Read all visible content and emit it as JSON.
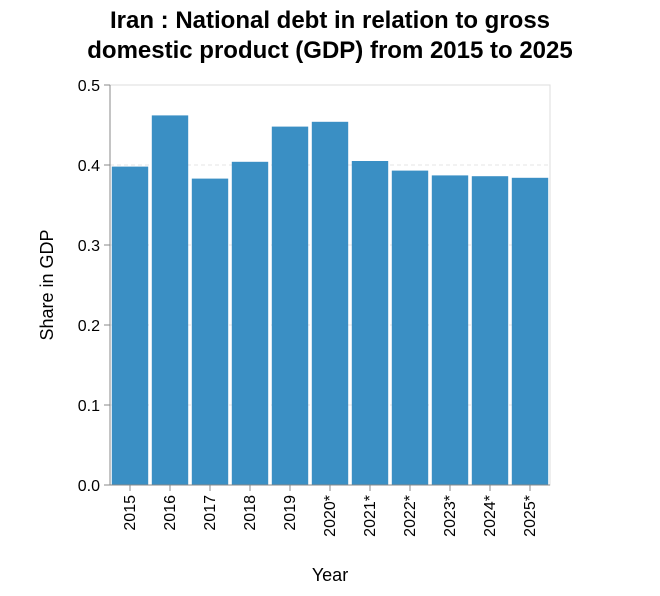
{
  "chart_data": {
    "type": "bar",
    "title_line1": "Iran : National debt in relation to gross",
    "title_line2": "domestic product (GDP) from 2015 to 2025",
    "xlabel": "Year",
    "ylabel": "Share in GDP",
    "ylim": [
      0,
      0.5
    ],
    "yticks": [
      "0.0",
      "0.1",
      "0.2",
      "0.3",
      "0.4",
      "0.5"
    ],
    "categories": [
      "2015",
      "2016",
      "2017",
      "2018",
      "2019",
      "2020*",
      "2021*",
      "2022*",
      "2023*",
      "2024*",
      "2025*"
    ],
    "values": [
      0.398,
      0.462,
      0.383,
      0.404,
      0.448,
      0.454,
      0.405,
      0.393,
      0.387,
      0.386,
      0.384
    ],
    "bar_color": "#3a8fc4",
    "grid": true
  }
}
